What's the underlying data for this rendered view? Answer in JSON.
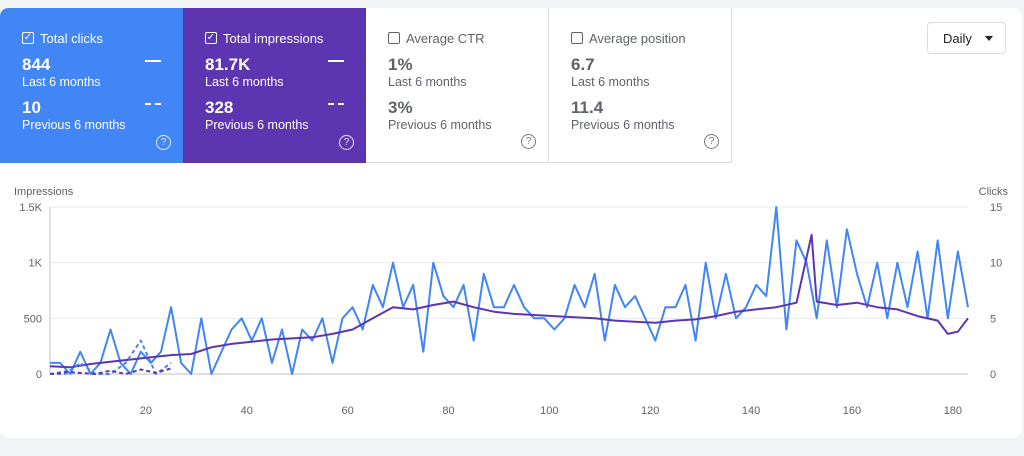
{
  "cards": [
    {
      "label": "Total clicks",
      "checked": true,
      "current_value": "844",
      "current_period": "Last 6 months",
      "previous_value": "10",
      "previous_period": "Previous 6 months"
    },
    {
      "label": "Total impressions",
      "checked": true,
      "current_value": "81.7K",
      "current_period": "Last 6 months",
      "previous_value": "328",
      "previous_period": "Previous 6 months"
    },
    {
      "label": "Average CTR",
      "checked": false,
      "current_value": "1%",
      "current_period": "Last 6 months",
      "previous_value": "3%",
      "previous_period": "Previous 6 months"
    },
    {
      "label": "Average position",
      "checked": false,
      "current_value": "6.7",
      "current_period": "Last 6 months",
      "previous_value": "11.4",
      "previous_period": "Previous 6 months"
    }
  ],
  "checkbox_checked_glyph": "✓",
  "help_glyph": "?",
  "period_select": {
    "label": "Daily"
  },
  "colors": {
    "clicks": "#4285f4",
    "impressions": "#5e35b1"
  },
  "chart_data": {
    "type": "line",
    "left_axis": {
      "title": "Impressions",
      "ticks": [
        "0",
        "500",
        "1K",
        "1.5K"
      ],
      "range": [
        0,
        1500
      ]
    },
    "right_axis": {
      "title": "Clicks",
      "ticks": [
        "0",
        "5",
        "10",
        "15"
      ],
      "range": [
        0,
        15
      ]
    },
    "x_ticks": [
      "20",
      "40",
      "60",
      "80",
      "100",
      "120",
      "140",
      "160",
      "180"
    ],
    "x_range": [
      1,
      183
    ],
    "grid": true,
    "series": [
      {
        "name": "Total clicks",
        "axis": "right",
        "style": "solid",
        "x": [
          1,
          3,
          5,
          7,
          9,
          11,
          13,
          15,
          17,
          19,
          21,
          23,
          25,
          27,
          29,
          31,
          33,
          35,
          37,
          39,
          41,
          43,
          45,
          47,
          49,
          51,
          53,
          55,
          57,
          59,
          61,
          63,
          65,
          67,
          69,
          71,
          73,
          75,
          77,
          79,
          81,
          83,
          85,
          87,
          89,
          91,
          93,
          95,
          97,
          99,
          101,
          103,
          105,
          107,
          109,
          111,
          113,
          115,
          117,
          119,
          121,
          123,
          125,
          127,
          129,
          131,
          133,
          135,
          137,
          139,
          141,
          143,
          145,
          147,
          149,
          151,
          153,
          155,
          157,
          159,
          161,
          163,
          165,
          167,
          169,
          171,
          173,
          175,
          177,
          179,
          181,
          183
        ],
        "values": [
          1,
          1,
          0,
          2,
          0,
          1,
          4,
          1,
          0,
          2,
          1,
          2,
          6,
          1,
          0,
          5,
          0,
          2,
          4,
          5,
          3,
          5,
          1,
          4,
          0,
          4,
          3,
          5,
          1,
          5,
          6,
          4,
          8,
          6,
          10,
          6,
          8,
          2,
          10,
          7,
          6,
          8,
          3,
          9,
          6,
          6,
          8,
          6,
          5,
          5,
          4,
          5,
          8,
          6,
          9,
          3,
          8,
          6,
          7,
          5,
          3,
          6,
          6,
          8,
          3,
          10,
          5,
          9,
          5,
          6,
          8,
          7,
          15,
          4,
          12,
          10,
          5,
          12,
          6,
          13,
          9,
          6,
          10,
          5,
          10,
          6,
          11,
          5,
          12,
          5,
          11,
          6
        ]
      },
      {
        "name": "Total impressions",
        "axis": "left",
        "style": "solid",
        "x": [
          1,
          5,
          9,
          13,
          17,
          21,
          25,
          29,
          33,
          37,
          41,
          45,
          49,
          53,
          57,
          61,
          65,
          69,
          73,
          77,
          81,
          85,
          89,
          93,
          97,
          101,
          105,
          109,
          113,
          117,
          121,
          125,
          129,
          133,
          137,
          141,
          145,
          149,
          152,
          153,
          157,
          161,
          165,
          169,
          173,
          177,
          179,
          181,
          183
        ],
        "values": [
          70,
          60,
          90,
          110,
          130,
          150,
          170,
          180,
          240,
          270,
          290,
          310,
          320,
          330,
          360,
          400,
          500,
          600,
          580,
          620,
          650,
          600,
          560,
          540,
          530,
          520,
          510,
          500,
          480,
          470,
          460,
          480,
          490,
          520,
          560,
          580,
          600,
          640,
          1250,
          650,
          620,
          640,
          600,
          580,
          520,
          480,
          360,
          380,
          500
        ]
      },
      {
        "name": "Total clicks (previous)",
        "axis": "right",
        "style": "dashed",
        "x": [
          1,
          4,
          7,
          10,
          13,
          16,
          19,
          22,
          25
        ],
        "values": [
          0,
          0,
          1,
          0,
          0,
          1,
          3,
          0,
          1
        ]
      },
      {
        "name": "Total impressions (previous)",
        "axis": "left",
        "style": "dashed",
        "x": [
          1,
          4,
          7,
          10,
          13,
          16,
          19,
          22,
          25
        ],
        "values": [
          0,
          20,
          10,
          0,
          30,
          0,
          40,
          10,
          50
        ]
      }
    ]
  }
}
